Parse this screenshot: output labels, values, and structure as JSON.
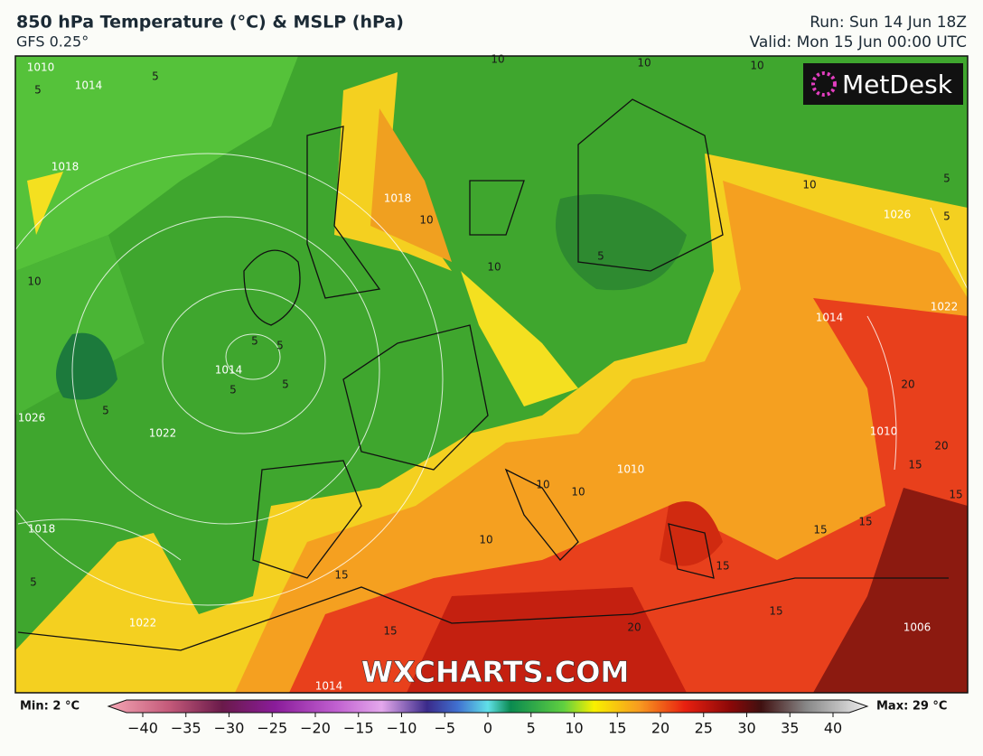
{
  "header": {
    "title": "850 hPa Temperature (°C) & MSLP (hPa)",
    "subtitle": "GFS 0.25°",
    "run": "Run: Sun 14 Jun 18Z",
    "valid": "Valid: Mon 15 Jun 00:00 UTC"
  },
  "logo": "MetDesk",
  "watermark": "WXCHARTS.COM",
  "map": {
    "labels": [
      "10",
      "10",
      "10",
      "1010",
      "1014",
      "5",
      "5",
      "1018",
      "1018",
      "10",
      "10",
      "1026",
      "5",
      "5",
      "10",
      "10",
      "5",
      "1014",
      "1022",
      "5",
      "5",
      "1014",
      "5",
      "5",
      "5",
      "1026",
      "1022",
      "20",
      "1010",
      "20",
      "15",
      "10",
      "10",
      "1010",
      "15",
      "15",
      "15",
      "1018",
      "5",
      "10",
      "15",
      "15",
      "1022",
      "15",
      "20",
      "15",
      "1006",
      "1014"
    ]
  },
  "colorbar": {
    "min_label": "Min: 2 °C",
    "max_label": "Max: 29 °C",
    "range": [
      -40,
      40
    ],
    "ticks": [
      {
        "value": -40,
        "label": "−40"
      },
      {
        "value": -35,
        "label": "−35"
      },
      {
        "value": -30,
        "label": "−30"
      },
      {
        "value": -25,
        "label": "−25"
      },
      {
        "value": -20,
        "label": "−20"
      },
      {
        "value": -15,
        "label": "−15"
      },
      {
        "value": -10,
        "label": "−10"
      },
      {
        "value": -5,
        "label": "−5"
      },
      0,
      5,
      10,
      15,
      20,
      25,
      30,
      35,
      40
    ]
  }
}
